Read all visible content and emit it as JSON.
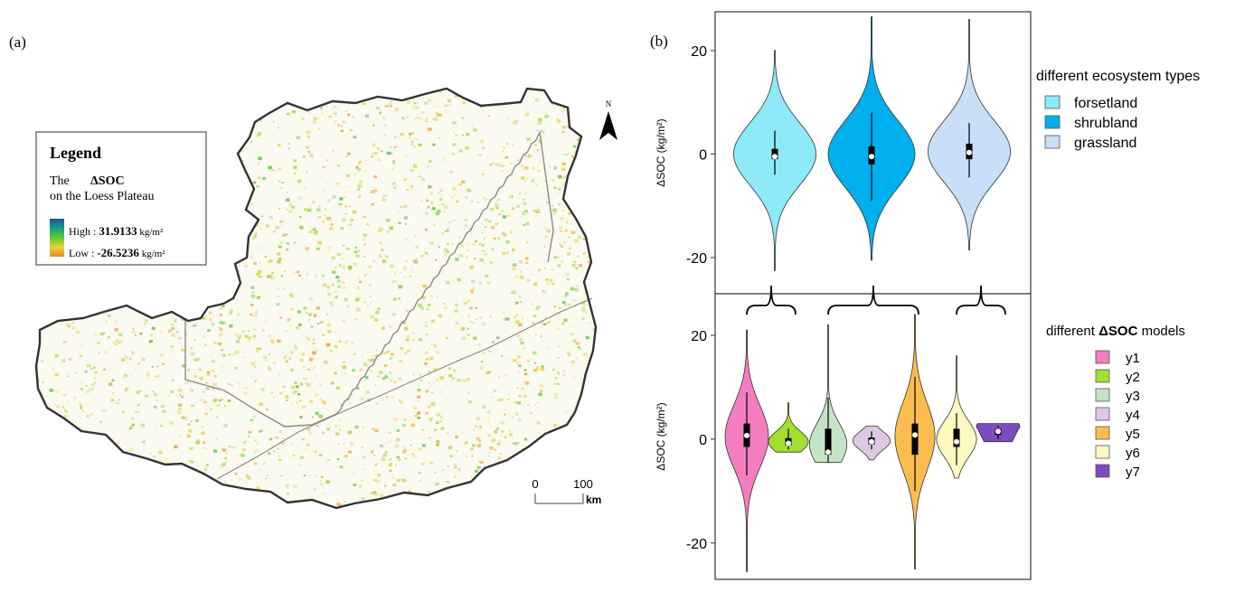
{
  "panel_a": {
    "label": "(a)",
    "north_label": "N",
    "legend": {
      "title": "Legend",
      "line1_prefix": "The",
      "line1_var": "ΔSOC",
      "line2": "on the Loess Plateau",
      "high_prefix": "High : ",
      "high_value": "31.9133",
      "high_unit": " kg/m²",
      "low_prefix": "Low : ",
      "low_value": "-26.5236",
      "low_unit": " kg/m²",
      "ramp_colors": [
        "#1f4f9e",
        "#16a085",
        "#5fc832",
        "#e7d23a",
        "#ec8a2a"
      ]
    },
    "scalebar": {
      "label_start": "0",
      "label_end": "100",
      "unit": "km"
    }
  },
  "panel_b": {
    "label": "(b)",
    "top_chart": {
      "ylabel": "ΔSOC (kg/m²)",
      "ylim": [
        -27,
        27.5
      ],
      "yticks": [
        -20,
        0,
        20
      ]
    },
    "bottom_chart": {
      "ylabel": "ΔSOC (kg/m²)",
      "ylim": [
        -27,
        28
      ],
      "yticks": [
        -20,
        0,
        20
      ]
    },
    "legend_top": {
      "title": "different ecosystem types",
      "items": [
        "forsetland",
        "shrubland",
        "grassland"
      ],
      "colors": [
        "#8ee9f8",
        "#00b0ee",
        "#c9def7"
      ]
    },
    "legend_bottom": {
      "title_prefix": "different ",
      "title_var": "ΔSOC",
      "title_suffix": " models",
      "items": [
        "y1",
        "y2",
        "y3",
        "y4",
        "y5",
        "y6",
        "y7"
      ],
      "colors": [
        "#f47dbf",
        "#a2df2e",
        "#c5e4c5",
        "#ddc9e6",
        "#fdbd4e",
        "#fdf9c0",
        "#7d4bbf"
      ]
    }
  },
  "chart_data": [
    {
      "type": "violin",
      "categories": [
        "forsetland",
        "shrubland",
        "grassland"
      ],
      "colors": [
        "#8ee9f8",
        "#00b0ee",
        "#c9def7"
      ],
      "ylabel": "ΔSOC (kg/m²)",
      "ylim": [
        -27,
        27.5
      ],
      "violins": [
        {
          "name": "forsetland",
          "min": -22.5,
          "max": 20,
          "q1": -1,
          "median": 0,
          "q3": 1,
          "whisker_low": -4,
          "whisker_high": 4.5,
          "mean": -0.5,
          "max_half_width": 0.95,
          "shape_sigma": 6
        },
        {
          "name": "shrubland",
          "min": -20.5,
          "max": 26.5,
          "q1": -2,
          "median": 0,
          "q3": 1.5,
          "whisker_low": -9,
          "whisker_high": 8,
          "mean": -0.5,
          "max_half_width": 1.0,
          "shape_sigma": 6.5
        },
        {
          "name": "grassland",
          "min": -18.5,
          "max": 26,
          "q1": -1,
          "median": 0.5,
          "q3": 2,
          "whisker_low": -4.5,
          "whisker_high": 6,
          "mean": 0.3,
          "max_half_width": 0.95,
          "shape_sigma": 6
        }
      ]
    },
    {
      "type": "violin",
      "categories": [
        "y1",
        "y2",
        "y3",
        "y4",
        "y5",
        "y6",
        "y7"
      ],
      "colors": [
        "#f47dbf",
        "#a2df2e",
        "#c5e4c5",
        "#ddc9e6",
        "#fdbd4e",
        "#fdf9c0",
        "#7d4bbf"
      ],
      "ylabel": "ΔSOC (kg/m²)",
      "ylim": [
        -27,
        28
      ],
      "violins": [
        {
          "name": "y1",
          "min": -25.5,
          "max": 21,
          "q1": -1.5,
          "median": 0.5,
          "q3": 3,
          "whisker_low": -7,
          "whisker_high": 9,
          "mean": 0.7,
          "max_half_width": 0.5,
          "shape_sigma": 6
        },
        {
          "name": "y2",
          "min": -2.5,
          "max": 7,
          "q1": -1.2,
          "median": -0.5,
          "q3": 0.2,
          "whisker_low": -2,
          "whisker_high": 2,
          "mean": -0.8,
          "max_half_width": 0.46,
          "shape_sigma": 2
        },
        {
          "name": "y3",
          "min": -4.5,
          "max": 22,
          "q1": -3,
          "median": -1,
          "q3": 2,
          "whisker_low": -4.5,
          "whisker_high": 8,
          "mean": -2.5,
          "max_half_width": 0.43,
          "shape_sigma": 4,
          "mode": -1,
          "flat_bottom": true
        },
        {
          "name": "y4",
          "min": -4,
          "max": 2.5,
          "q1": -1,
          "median": -0.3,
          "q3": 0.3,
          "whisker_low": -2,
          "whisker_high": 1.5,
          "mean": -0.5,
          "max_half_width": 0.43,
          "shape_sigma": 1.8
        },
        {
          "name": "y5",
          "min": -25,
          "max": 24,
          "q1": -3,
          "median": 0.5,
          "q3": 3,
          "whisker_low": -10,
          "whisker_high": 12,
          "mean": 0.8,
          "max_half_width": 0.46,
          "shape_sigma": 6.5
        },
        {
          "name": "y6",
          "min": -7.5,
          "max": 16,
          "q1": -1.5,
          "median": 0,
          "q3": 2,
          "whisker_low": -5,
          "whisker_high": 5,
          "mean": -0.5,
          "max_half_width": 0.46,
          "shape_sigma": 3.5
        },
        {
          "name": "y7",
          "min": -0.5,
          "max": 3,
          "q1": 0.8,
          "median": 1.5,
          "q3": 2,
          "whisker_low": 0,
          "whisker_high": 2.5,
          "mean": 1.5,
          "max_half_width": 0.5,
          "shape_sigma": 1.5,
          "mode": 2.5,
          "flat_bottom": true
        }
      ]
    }
  ]
}
